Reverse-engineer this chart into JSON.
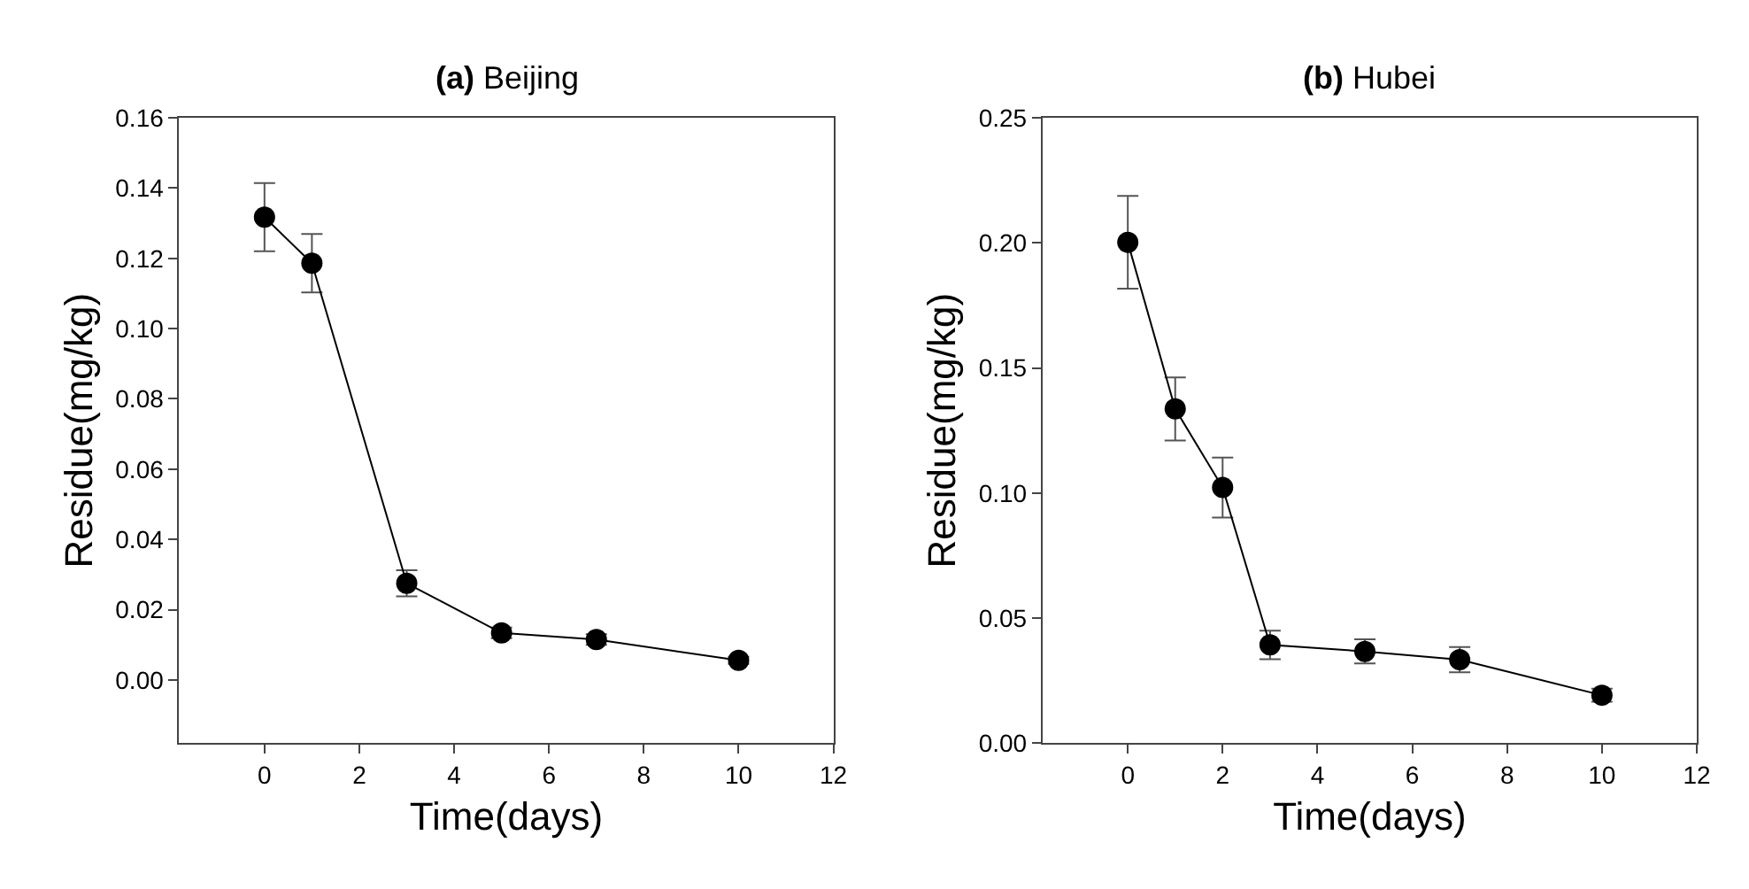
{
  "chart_data": [
    {
      "type": "line",
      "title": "(a) Beijing",
      "xlabel": "Time(days)",
      "ylabel": "Residue(mg/kg)",
      "x": [
        0,
        1,
        3,
        5,
        7,
        10
      ],
      "series": [
        {
          "color": "#000000",
          "values": [
            0.1317,
            0.1186,
            0.0275,
            0.0134,
            0.0115,
            0.0056
          ],
          "errors": [
            0.0097,
            0.0083,
            0.0037,
            0.0015,
            0.0015,
            0.001
          ]
        }
      ],
      "xlim": [
        -1.8,
        12
      ],
      "xticks": [
        0,
        2,
        4,
        6,
        8,
        10,
        12
      ],
      "ylim": [
        -0.018,
        0.16
      ],
      "yticks": [
        {
          "value": 0,
          "label": "0.00"
        },
        {
          "value": 0.02,
          "label": "0.02"
        },
        {
          "value": 0.04,
          "label": "0.04"
        },
        {
          "value": 0.06,
          "label": "0.06"
        },
        {
          "value": 0.08,
          "label": "0.08"
        },
        {
          "value": 0.1,
          "label": "0.10"
        },
        {
          "value": 0.12,
          "label": "0.12"
        },
        {
          "value": 0.14,
          "label": "0.14"
        },
        {
          "value": 0.16,
          "label": "0.16"
        }
      ],
      "marker": "circle",
      "line_style": "solid"
    },
    {
      "type": "line",
      "title": "(b) Hubei",
      "xlabel": "Time(days)",
      "ylabel": "Residue(mg/kg)",
      "x": [
        0,
        1,
        2,
        3,
        5,
        7,
        10
      ],
      "series": [
        {
          "color": "#000000",
          "values": [
            0.2002,
            0.1336,
            0.1022,
            0.0393,
            0.0367,
            0.0334,
            0.0192
          ],
          "errors": [
            0.0185,
            0.0126,
            0.012,
            0.0057,
            0.0048,
            0.005,
            0.0026
          ]
        }
      ],
      "xlim": [
        -1.8,
        12
      ],
      "xticks": [
        0,
        2,
        4,
        6,
        8,
        10,
        12
      ],
      "ylim": [
        0,
        0.25
      ],
      "yticks": [
        {
          "value": 0,
          "label": "0.00"
        },
        {
          "value": 0.05,
          "label": "0.05"
        },
        {
          "value": 0.1,
          "label": "0.10"
        },
        {
          "value": 0.15,
          "label": "0.15"
        },
        {
          "value": 0.2,
          "label": "0.20"
        },
        {
          "value": 0.25,
          "label": "0.25"
        }
      ],
      "marker": "circle",
      "line_style": "solid"
    }
  ]
}
